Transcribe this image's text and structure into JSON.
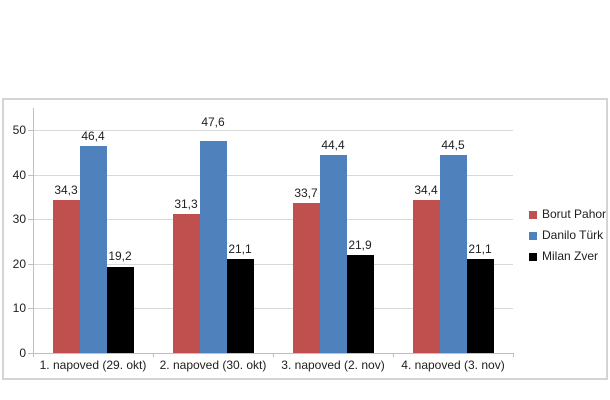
{
  "chart_data": {
    "type": "bar",
    "title": "",
    "categories": [
      "1. napoved (29. okt)",
      "2. napoved (30. okt)",
      "3. napoved (2. nov)",
      "4. napoved (3. nov)"
    ],
    "series": [
      {
        "name": "Borut Pahor",
        "color": "#c0504d",
        "values": [
          34.3,
          31.3,
          33.7,
          34.4
        ],
        "labels": [
          "34,3",
          "31,3",
          "33,7",
          "34,4"
        ]
      },
      {
        "name": "Danilo Türk",
        "color": "#4f81bd",
        "values": [
          46.4,
          47.6,
          44.4,
          44.5
        ],
        "labels": [
          "46,4",
          "47,6",
          "44,4",
          "44,5"
        ]
      },
      {
        "name": "Milan Zver",
        "color": "#000000",
        "values": [
          19.2,
          21.1,
          21.9,
          21.1
        ],
        "labels": [
          "19,2",
          "21,1",
          "21,9",
          "21,1"
        ]
      }
    ],
    "y_axis": {
      "ticks": [
        0,
        10,
        20,
        30,
        40,
        50
      ],
      "tick_labels": [
        "0",
        "10",
        "20",
        "30",
        "40",
        "50"
      ],
      "ylim": [
        0,
        55
      ]
    },
    "xlabel": "",
    "ylabel": "",
    "grid": true,
    "legend_position": "right",
    "background_color": "#ffffff"
  }
}
